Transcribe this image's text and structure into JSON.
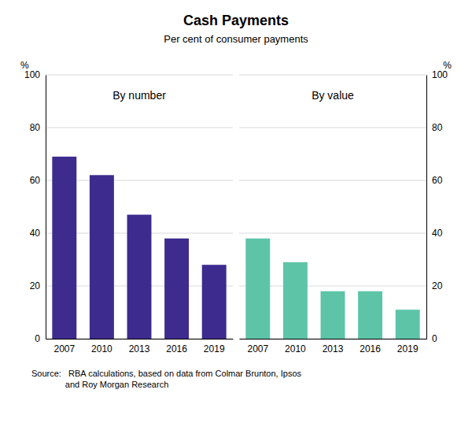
{
  "chart_data": [
    {
      "type": "bar",
      "title": "Cash Payments",
      "subtitle": "Per cent of consumer payments",
      "annotations": [
        "By number"
      ],
      "ylabel": "%",
      "categories": [
        "2007",
        "2010",
        "2013",
        "2016",
        "2019"
      ],
      "values": [
        69,
        62,
        47,
        38,
        28
      ],
      "color": "#3D2B8E",
      "ylim": [
        0,
        100
      ],
      "yticks": [
        0,
        20,
        40,
        60,
        80,
        100
      ],
      "grid": true,
      "source": "Source:   RBA calculations, based on data from Colmar Brunton, Ipsos\n              and Roy Morgan Research"
    },
    {
      "type": "bar",
      "annotations": [
        "By value"
      ],
      "ylabel": "%",
      "categories": [
        "2007",
        "2010",
        "2013",
        "2016",
        "2019"
      ],
      "values": [
        38,
        29,
        18,
        18,
        11
      ],
      "color": "#5EC4A8",
      "ylim": [
        0,
        100
      ],
      "yticks": [
        0,
        20,
        40,
        60,
        80,
        100
      ],
      "grid": true
    }
  ]
}
